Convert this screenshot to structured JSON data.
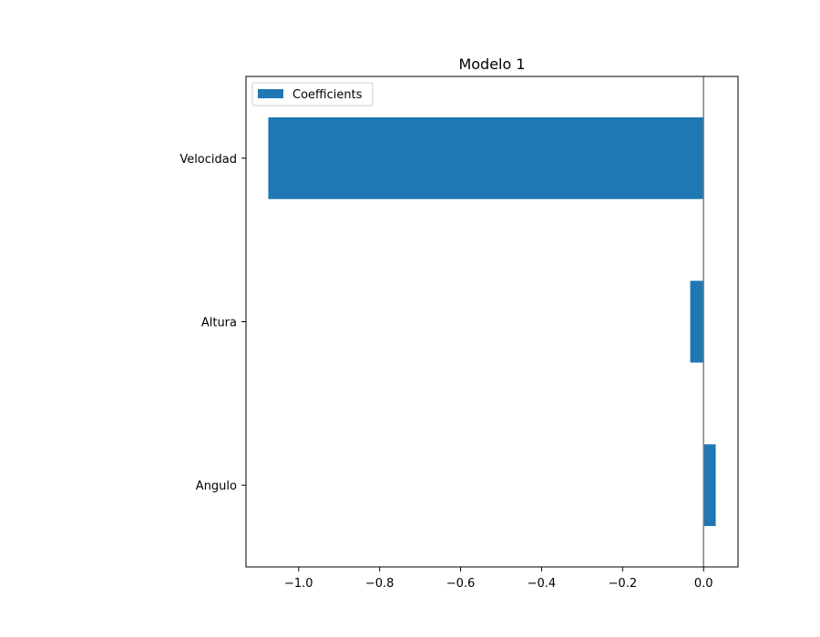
{
  "chart_data": {
    "type": "bar",
    "orientation": "horizontal",
    "title": "Modelo 1",
    "xlabel": "",
    "ylabel": "",
    "categories": [
      "Velocidad",
      "Altura",
      "Angulo"
    ],
    "series": [
      {
        "name": "Coefficients",
        "values": [
          -1.075,
          -0.033,
          0.03
        ]
      }
    ],
    "xlim": [
      -1.13,
      0.085
    ],
    "xticks": [
      -1.0,
      -0.8,
      -0.6,
      -0.4,
      -0.2,
      0.0
    ],
    "xtick_labels": [
      "−1.0",
      "−0.8",
      "−0.6",
      "−0.4",
      "−0.2",
      "0.0"
    ],
    "reference_line": {
      "x": 0.0,
      "color": "#808080"
    },
    "bar_color": "#1f77b4",
    "grid": false,
    "legend_position": "top-left"
  }
}
